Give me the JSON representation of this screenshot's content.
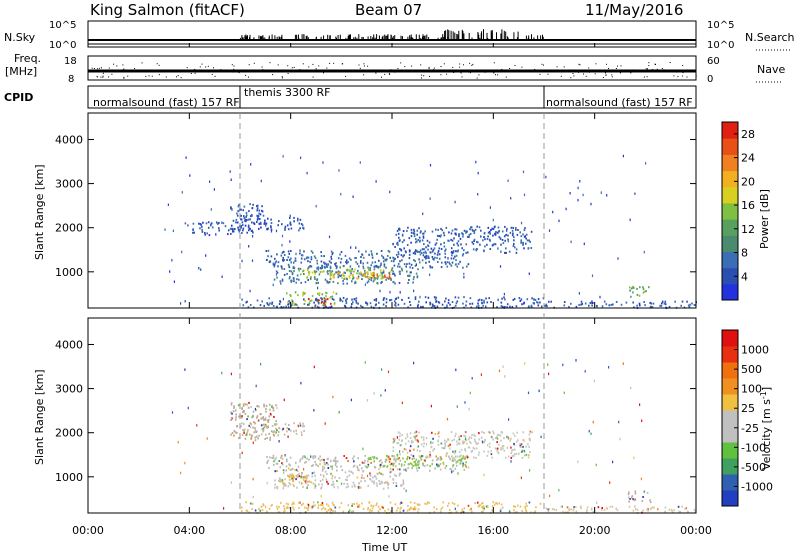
{
  "header": {
    "station": "King Salmon (fitACF)",
    "beam": "Beam 07",
    "date": "11/May/2016"
  },
  "strips": {
    "nsky_label": "N.Sky",
    "nsky_ticks": [
      "10^5",
      "10^0"
    ],
    "nsearch_label": "N.Search",
    "nsearch_ticks": [
      "10^5",
      "10^0"
    ],
    "freq_label_1": "Freq.",
    "freq_label_2": "[MHz]",
    "freq_ticks": [
      "18",
      "8"
    ],
    "nave_label": "Nave",
    "nave_ticks": [
      "60",
      "0"
    ],
    "cpid_label": "CPID",
    "cpid_segments": [
      {
        "label": "normalsound (fast) 157 RF",
        "start_hour": 0
      },
      {
        "label": "themis 3300 RF",
        "start_hour": 6
      },
      {
        "label": "normalsound (fast) 157 RF",
        "start_hour": 18
      }
    ]
  },
  "chart_data": [
    {
      "type": "heatmap",
      "title": "",
      "xlabel": "Time UT",
      "ylabel": "Slant Range [km]",
      "xlim": [
        0,
        24
      ],
      "ylim": [
        180,
        4600
      ],
      "x_ticks": [
        "00:00",
        "04:00",
        "08:00",
        "12:00",
        "16:00",
        "20:00",
        "00:00"
      ],
      "y_ticks": [
        1000,
        2000,
        3000,
        4000
      ],
      "colorbar": {
        "label": "Power [dB]",
        "ticks": [
          "4",
          "8",
          "12",
          "16",
          "20",
          "24",
          "28"
        ],
        "range": [
          0,
          30
        ],
        "colors": [
          "#2233dd",
          "#2b4fb0",
          "#3a6fb5",
          "#4a8a6e",
          "#58a060",
          "#80c040",
          "#d8d020",
          "#f0b020",
          "#f08020",
          "#e85018",
          "#e02010"
        ]
      },
      "regions": [
        {
          "t0": 5.6,
          "t1": 6.9,
          "r0": 2150,
          "r1": 2600,
          "level": 4
        },
        {
          "t0": 3.8,
          "t1": 6.5,
          "r0": 1850,
          "r1": 2150,
          "level": 3
        },
        {
          "t0": 6.0,
          "t1": 8.5,
          "r0": 1950,
          "r1": 2250,
          "level": 3
        },
        {
          "t0": 7.0,
          "t1": 15.0,
          "r0": 1100,
          "r1": 1500,
          "level": 5
        },
        {
          "t0": 7.3,
          "t1": 13.0,
          "r0": 750,
          "r1": 1150,
          "level": 7
        },
        {
          "t0": 8.3,
          "t1": 12.0,
          "r0": 850,
          "r1": 1080,
          "level": 16
        },
        {
          "t0": 9.5,
          "t1": 11.5,
          "r0": 870,
          "r1": 1020,
          "level": 21
        },
        {
          "t0": 11.2,
          "t1": 12.1,
          "r0": 880,
          "r1": 1000,
          "level": 25
        },
        {
          "t0": 7.8,
          "t1": 9.8,
          "r0": 260,
          "r1": 560,
          "level": 15
        },
        {
          "t0": 8.6,
          "t1": 9.6,
          "r0": 240,
          "r1": 420,
          "level": 28
        },
        {
          "t0": 6.0,
          "t1": 18.0,
          "r0": 200,
          "r1": 450,
          "level": 4
        },
        {
          "t0": 12.0,
          "t1": 17.5,
          "r0": 1450,
          "r1": 2050,
          "level": 4
        },
        {
          "t0": 21.3,
          "t1": 22.2,
          "r0": 450,
          "r1": 700,
          "level": 13
        },
        {
          "t0": 18.0,
          "t1": 24.0,
          "r0": 200,
          "r1": 350,
          "level": 4
        }
      ]
    },
    {
      "type": "heatmap",
      "title": "",
      "xlabel": "Time UT",
      "ylabel": "Slant Range [km]",
      "xlim": [
        0,
        24
      ],
      "ylim": [
        180,
        4600
      ],
      "x_ticks": [
        "00:00",
        "04:00",
        "08:00",
        "12:00",
        "16:00",
        "20:00",
        "00:00"
      ],
      "y_ticks": [
        1000,
        2000,
        3000,
        4000
      ],
      "colorbar": {
        "label": "Velocity [m s^-1]",
        "ticks": [
          "1000",
          "500",
          "100",
          "25",
          "-25",
          "-100",
          "-500",
          "-1000"
        ],
        "colors": [
          "#2040c0",
          "#3060b0",
          "#40a060",
          "#60c040",
          "#c0c0c0",
          "#c0c0c0",
          "#f0c040",
          "#f09020",
          "#f07010",
          "#e83010",
          "#e01010"
        ]
      },
      "regions": [
        {
          "t0": 5.6,
          "t1": 7.4,
          "r0": 1850,
          "r1": 2700,
          "color": "#b8a898"
        },
        {
          "t0": 6.0,
          "t1": 8.5,
          "r0": 1950,
          "r1": 2250,
          "color": "#c8b8a0"
        },
        {
          "t0": 7.0,
          "t1": 15.0,
          "r0": 1150,
          "r1": 1500,
          "color": "#b8b8b0"
        },
        {
          "t0": 11.0,
          "t1": 15.0,
          "r0": 1250,
          "r1": 1500,
          "color": "#80c840"
        },
        {
          "t0": 7.3,
          "t1": 12.5,
          "r0": 750,
          "r1": 1150,
          "color": "#c0c0c0"
        },
        {
          "t0": 7.4,
          "t1": 9.0,
          "r0": 850,
          "r1": 1050,
          "color": "#f0b830"
        },
        {
          "t0": 6.0,
          "t1": 18.0,
          "r0": 200,
          "r1": 450,
          "color": "#e8c060"
        },
        {
          "t0": 12.0,
          "t1": 17.5,
          "r0": 1450,
          "r1": 2050,
          "color": "#c8c8c0"
        },
        {
          "t0": 21.3,
          "t1": 22.2,
          "r0": 450,
          "r1": 700,
          "color": "#d0a0a0"
        },
        {
          "t0": 18.0,
          "t1": 24.0,
          "r0": 200,
          "r1": 350,
          "color": "#d8c8a0"
        }
      ]
    }
  ]
}
